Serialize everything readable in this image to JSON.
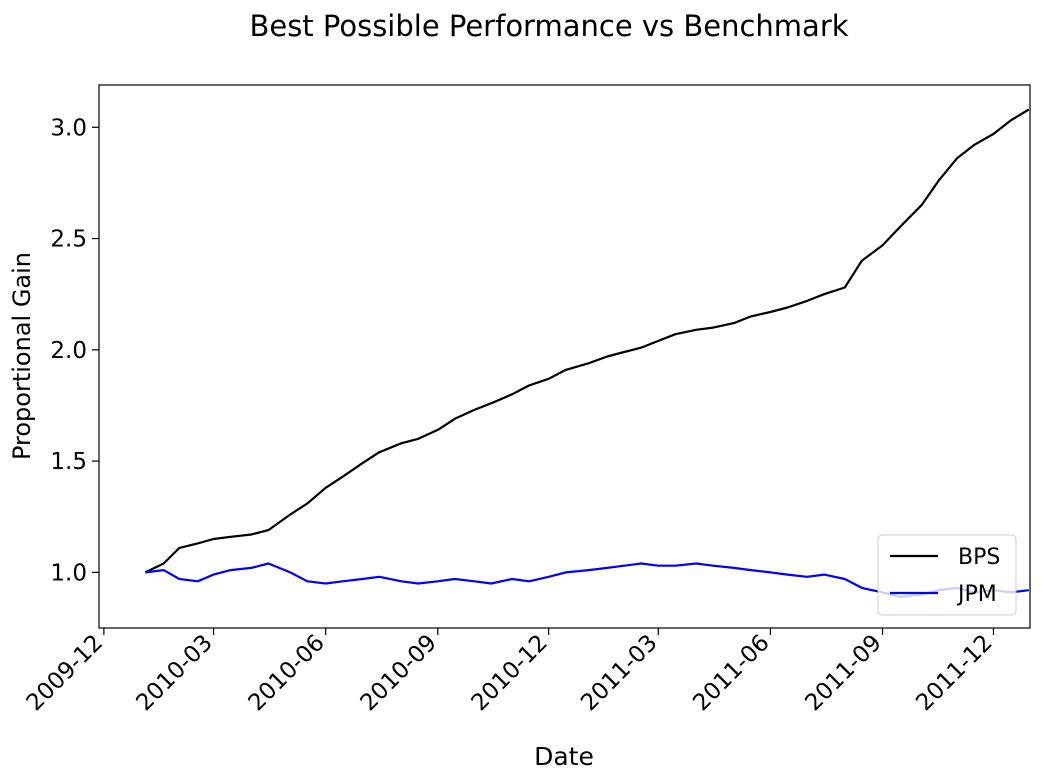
{
  "chart_data": {
    "type": "line",
    "title": "Best Possible Performance vs Benchmark",
    "xlabel": "Date",
    "ylabel": "Proportional Gain",
    "x_ticks": [
      "2009-12",
      "2010-03",
      "2010-06",
      "2010-09",
      "2010-12",
      "2011-03",
      "2011-06",
      "2011-09",
      "2011-12"
    ],
    "y_ticks": [
      "1.0",
      "1.5",
      "2.0",
      "2.5",
      "3.0"
    ],
    "xlim": [
      "2009-11-27",
      "2011-12-31"
    ],
    "ylim": [
      0.75,
      3.19
    ],
    "grid": false,
    "legend": {
      "position": "lower-right",
      "entries": [
        "BPS",
        "JPM"
      ]
    },
    "x": [
      "2010-01-04",
      "2010-01-19",
      "2010-02-01",
      "2010-02-16",
      "2010-03-01",
      "2010-03-15",
      "2010-04-01",
      "2010-04-15",
      "2010-05-03",
      "2010-05-17",
      "2010-06-01",
      "2010-06-15",
      "2010-07-01",
      "2010-07-15",
      "2010-08-02",
      "2010-08-16",
      "2010-09-01",
      "2010-09-15",
      "2010-10-01",
      "2010-10-15",
      "2010-11-01",
      "2010-11-15",
      "2010-12-01",
      "2010-12-15",
      "2011-01-03",
      "2011-01-18",
      "2011-02-01",
      "2011-02-15",
      "2011-03-01",
      "2011-03-15",
      "2011-04-01",
      "2011-04-15",
      "2011-05-02",
      "2011-05-16",
      "2011-06-01",
      "2011-06-15",
      "2011-07-01",
      "2011-07-15",
      "2011-08-01",
      "2011-08-15",
      "2011-09-01",
      "2011-09-15",
      "2011-10-03",
      "2011-10-17",
      "2011-11-01",
      "2011-11-15",
      "2011-12-01",
      "2011-12-15",
      "2011-12-30"
    ],
    "series": [
      {
        "name": "BPS",
        "color": "#000000",
        "values": [
          1.0,
          1.04,
          1.11,
          1.13,
          1.15,
          1.16,
          1.17,
          1.19,
          1.26,
          1.31,
          1.38,
          1.43,
          1.49,
          1.54,
          1.58,
          1.6,
          1.64,
          1.69,
          1.73,
          1.76,
          1.8,
          1.84,
          1.87,
          1.91,
          1.94,
          1.97,
          1.99,
          2.01,
          2.04,
          2.07,
          2.09,
          2.1,
          2.12,
          2.15,
          2.17,
          2.19,
          2.22,
          2.25,
          2.28,
          2.4,
          2.47,
          2.55,
          2.65,
          2.76,
          2.86,
          2.92,
          2.97,
          3.03,
          3.08
        ]
      },
      {
        "name": "JPM",
        "color": "#0000ff",
        "values": [
          1.0,
          1.01,
          0.97,
          0.96,
          0.99,
          1.01,
          1.02,
          1.04,
          1.0,
          0.96,
          0.95,
          0.96,
          0.97,
          0.98,
          0.96,
          0.95,
          0.96,
          0.97,
          0.96,
          0.95,
          0.97,
          0.96,
          0.98,
          1.0,
          1.01,
          1.02,
          1.03,
          1.04,
          1.03,
          1.03,
          1.04,
          1.03,
          1.02,
          1.01,
          1.0,
          0.99,
          0.98,
          0.99,
          0.97,
          0.93,
          0.91,
          0.89,
          0.9,
          0.92,
          0.93,
          0.91,
          0.92,
          0.91,
          0.92
        ]
      }
    ]
  }
}
